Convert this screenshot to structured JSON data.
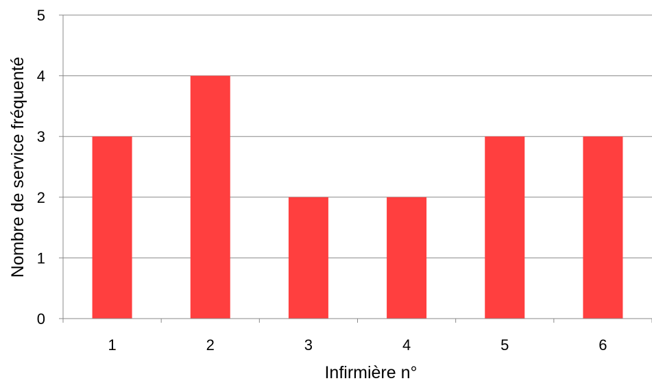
{
  "chart_data": {
    "type": "bar",
    "title": "",
    "xlabel": "Infirmière n°",
    "ylabel": "Nombre de service fréquenté",
    "categories": [
      "1",
      "2",
      "3",
      "4",
      "5",
      "6"
    ],
    "values": [
      3,
      4,
      2,
      2,
      3,
      3
    ],
    "ylim": [
      0,
      5
    ],
    "yticks": [
      "0",
      "1",
      "2",
      "3",
      "4",
      "5"
    ],
    "grid": true,
    "legend": "none",
    "colors": {
      "bar": "#ff3f3f",
      "grid": "#888888",
      "axis": "#888888"
    }
  }
}
